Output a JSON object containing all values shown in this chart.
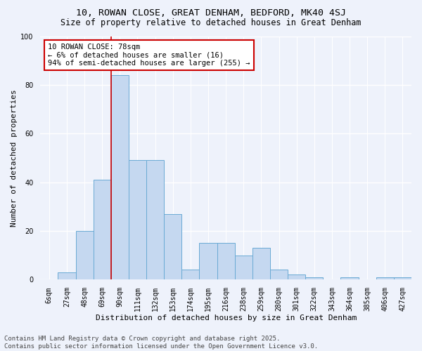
{
  "title_line1": "10, ROWAN CLOSE, GREAT DENHAM, BEDFORD, MK40 4SJ",
  "title_line2": "Size of property relative to detached houses in Great Denham",
  "xlabel": "Distribution of detached houses by size in Great Denham",
  "ylabel": "Number of detached properties",
  "categories": [
    "6sqm",
    "27sqm",
    "48sqm",
    "69sqm",
    "90sqm",
    "111sqm",
    "132sqm",
    "153sqm",
    "174sqm",
    "195sqm",
    "216sqm",
    "238sqm",
    "259sqm",
    "280sqm",
    "301sqm",
    "322sqm",
    "343sqm",
    "364sqm",
    "385sqm",
    "406sqm",
    "427sqm"
  ],
  "values": [
    0,
    3,
    20,
    41,
    84,
    49,
    49,
    27,
    4,
    15,
    15,
    10,
    13,
    4,
    2,
    1,
    0,
    1,
    0,
    1,
    1
  ],
  "bar_color": "#c5d8f0",
  "bar_edge_color": "#6aaad4",
  "red_line_x": 3.5,
  "ylim": [
    0,
    100
  ],
  "yticks": [
    0,
    20,
    40,
    60,
    80,
    100
  ],
  "annotation_text": "10 ROWAN CLOSE: 78sqm\n← 6% of detached houses are smaller (16)\n94% of semi-detached houses are larger (255) →",
  "annotation_box_color": "#ffffff",
  "annotation_box_edge": "#cc0000",
  "footer_line1": "Contains HM Land Registry data © Crown copyright and database right 2025.",
  "footer_line2": "Contains public sector information licensed under the Open Government Licence v3.0.",
  "bg_color": "#eef2fb",
  "grid_color": "#ffffff",
  "title_fontsize": 9.5,
  "subtitle_fontsize": 8.5,
  "axis_label_fontsize": 8,
  "tick_fontsize": 7,
  "annotation_fontsize": 7.5,
  "footer_fontsize": 6.5
}
